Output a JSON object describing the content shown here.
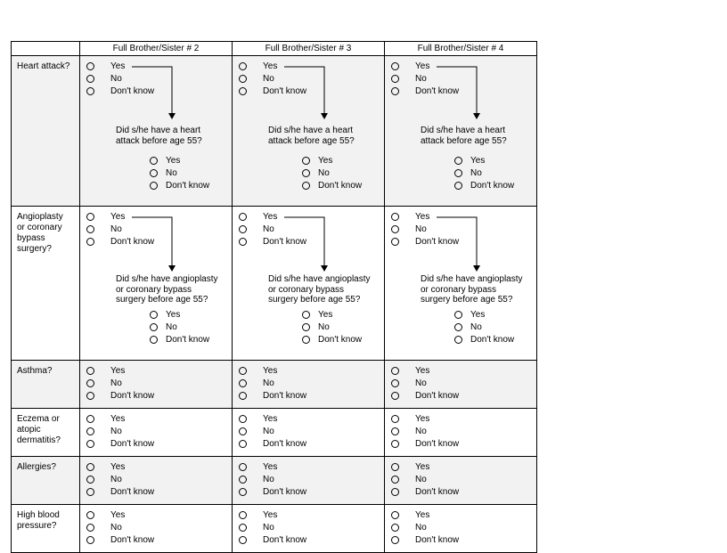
{
  "columns": [
    "Full Brother/Sister # 2",
    "Full Brother/Sister # 3",
    "Full Brother/Sister # 4"
  ],
  "options": [
    "Yes",
    "No",
    "Don't know"
  ],
  "rows": [
    {
      "id": "heart",
      "label": "Heart attack?",
      "shaded": true,
      "followup": "Did s/he have a heart attack before age 55?",
      "followup_lines": [
        "Did s/he have a heart",
        "attack before age 55?"
      ]
    },
    {
      "id": "angio",
      "label": "Angioplasty or coronary bypass surgery?",
      "shaded": false,
      "label_lines": [
        "Angioplasty",
        "or coronary",
        "bypass",
        "surgery?"
      ],
      "followup": "Did s/he have angioplasty or coronary bypass surgery before age 55?",
      "followup_lines": [
        "Did s/he have angioplasty",
        "or coronary bypass",
        "surgery before age 55?"
      ]
    },
    {
      "id": "asthma",
      "label": "Asthma?",
      "shaded": true
    },
    {
      "id": "eczema",
      "label": "Eczema or atopic dermatitis?",
      "shaded": false,
      "label_lines": [
        "Eczema or",
        "atopic",
        "dermatitis?"
      ]
    },
    {
      "id": "allergies",
      "label": "Allergies?",
      "shaded": true
    },
    {
      "id": "hbp",
      "label": "High blood pressure?",
      "shaded": false,
      "label_lines": [
        "High blood",
        "pressure?"
      ]
    }
  ]
}
